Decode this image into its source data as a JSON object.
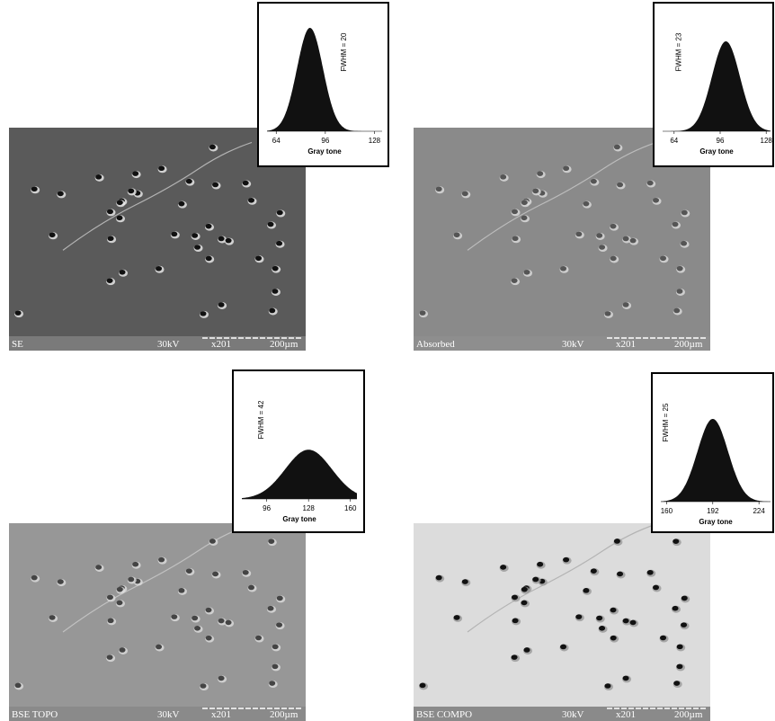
{
  "panels": [
    {
      "image": {
        "label": "SE",
        "voltage": "30kV",
        "magnification": "x201",
        "scale": "200µm"
      },
      "histogram": {
        "label": "FWHM = 20",
        "fwhm": 20,
        "center": 86,
        "xlim": [
          58,
          133
        ],
        "xticks": [
          64,
          96,
          128
        ],
        "xlabel": "Gray tone"
      }
    },
    {
      "image": {
        "label": "Absorbed",
        "voltage": "30kV",
        "magnification": "x201",
        "scale": "200µm"
      },
      "histogram": {
        "label": "FWHM = 23",
        "fwhm": 23,
        "center": 100,
        "xlim": [
          56,
          131
        ],
        "xticks": [
          64,
          96,
          128
        ],
        "xlabel": "Gray tone"
      }
    },
    {
      "image": {
        "label": "BSE TOPO",
        "voltage": "30kV",
        "magnification": "x201",
        "scale": "200µm"
      },
      "histogram": {
        "label": "FWHM = 42",
        "fwhm": 42,
        "center": 128,
        "xlim": [
          77,
          165
        ],
        "xticks": [
          96,
          128,
          160
        ],
        "xlabel": "Gray tone"
      }
    },
    {
      "image": {
        "label": "BSE COMPO",
        "voltage": "30kV",
        "magnification": "x201",
        "scale": "200µm"
      },
      "histogram": {
        "label": "FWHM = 25",
        "fwhm": 25,
        "center": 192,
        "xlim": [
          156,
          232
        ],
        "xticks": [
          160,
          192,
          224
        ],
        "xlabel": "Gray tone"
      }
    }
  ]
}
